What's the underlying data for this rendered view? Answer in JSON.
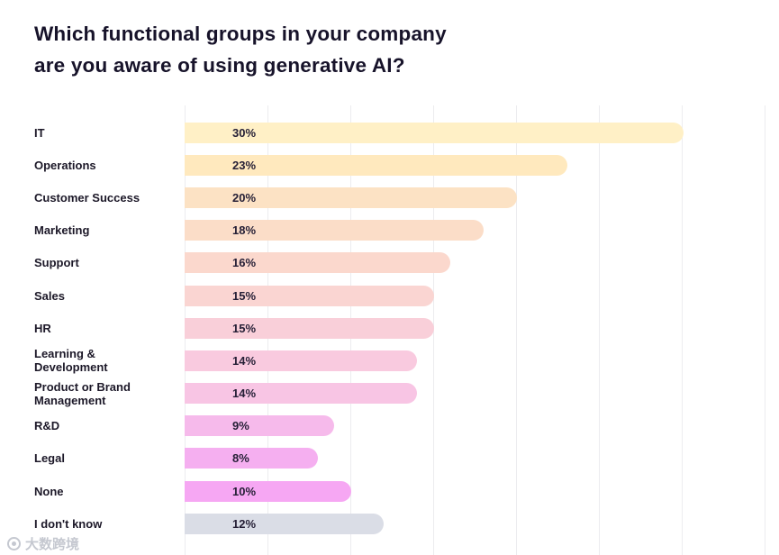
{
  "title": {
    "line1": "Which functional groups in your company",
    "line2": "are you aware of using generative AI?"
  },
  "chart_data": {
    "type": "bar",
    "orientation": "horizontal",
    "title": "Which functional groups in your company are you aware of using generative AI?",
    "categories": [
      "IT",
      "Operations",
      "Customer Success",
      "Marketing",
      "Support",
      "Sales",
      "HR",
      "Learning & Development",
      "Product or Brand Management",
      "R&D",
      "Legal",
      "None",
      "I don't know"
    ],
    "values": [
      30,
      23,
      20,
      18,
      16,
      15,
      15,
      14,
      14,
      9,
      8,
      10,
      12
    ],
    "value_labels": [
      "30%",
      "23%",
      "20%",
      "18%",
      "16%",
      "15%",
      "15%",
      "14%",
      "14%",
      "9%",
      "8%",
      "10%",
      "12%"
    ],
    "bar_colors": [
      "#FFF0C6",
      "#FFE9BE",
      "#FCE2C4",
      "#FBDDC8",
      "#FBD8CD",
      "#FAD5D2",
      "#F9CFD9",
      "#F9CADF",
      "#F8C5E4",
      "#F6BAEB",
      "#F5AFF0",
      "#F6A7F3",
      "#DADDE6"
    ],
    "xlim": [
      0,
      35
    ],
    "gridline_interval": 5,
    "grid": true,
    "legend": false,
    "xlabel": "",
    "ylabel": ""
  },
  "watermark": {
    "icon": "globe-logo-icon",
    "text": "大数跨境"
  }
}
